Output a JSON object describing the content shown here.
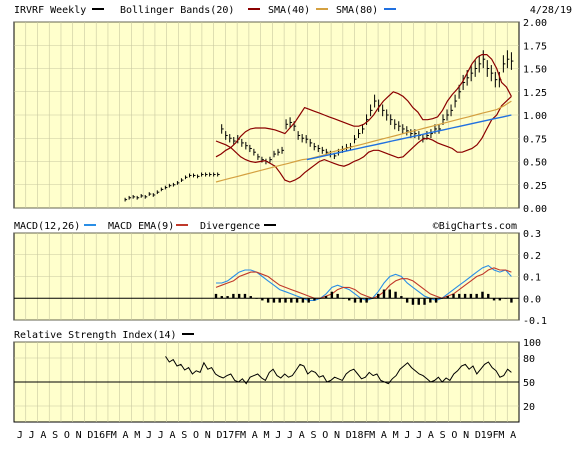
{
  "header": {
    "symbol": "IRVRF Weekly",
    "legend_bollinger": "Bollinger Bands(20)",
    "legend_sma40": "SMA(40)",
    "legend_sma80": "SMA(80)",
    "date": "4/28/19"
  },
  "colors": {
    "panel_bg": "#ffffcc",
    "grid": "#c8c8a0",
    "price": "#000000",
    "bollinger": "#8b0000",
    "sma40": "#d4a040",
    "sma80": "#2070e0",
    "macd": "#2a8ee6",
    "macd_ema": "#c0392b",
    "divergence": "#000000",
    "rsi": "#000000"
  },
  "x_axis": {
    "labels": [
      "J",
      "J",
      "A",
      "S",
      "O",
      "N",
      "D",
      "16F",
      "M",
      "A",
      "M",
      "J",
      "J",
      "A",
      "S",
      "O",
      "N",
      "D",
      "17F",
      "M",
      "A",
      "M",
      "J",
      "J",
      "A",
      "S",
      "O",
      "N",
      "D",
      "18F",
      "M",
      "A",
      "M",
      "J",
      "J",
      "A",
      "S",
      "O",
      "N",
      "D",
      "19F",
      "M",
      "A"
    ]
  },
  "macd_header": {
    "macd_label": "MACD(12,26)",
    "ema_label": "MACD EMA(9)",
    "divergence_label": "Divergence",
    "watermark": "©BigCharts.com"
  },
  "rsi_header": {
    "label": "Relative Strength Index(14)"
  },
  "chart_data": [
    {
      "type": "line",
      "title": "IRVRF Weekly",
      "y_ticks": [
        "0.00",
        "0.25",
        "0.50",
        "0.75",
        "1.00",
        "1.25",
        "1.50",
        "1.75",
        "2.00"
      ],
      "ylim": [
        0,
        2.0
      ],
      "grid": true,
      "series": [
        {
          "name": "IRVRF Weekly",
          "values": [
            0.09,
            0.11,
            0.12,
            0.11,
            0.13,
            0.12,
            0.15,
            0.14,
            0.17,
            0.2,
            0.22,
            0.24,
            0.25,
            0.27,
            0.3,
            0.33,
            0.35,
            0.35,
            0.34,
            0.36,
            0.36,
            0.36,
            0.36,
            0.36,
            0.85,
            0.78,
            0.75,
            0.72,
            0.74,
            0.7,
            0.67,
            0.64,
            0.6,
            0.55,
            0.52,
            0.5,
            0.52,
            0.58,
            0.6,
            0.62,
            0.9,
            0.92,
            0.88,
            0.78,
            0.75,
            0.74,
            0.7,
            0.66,
            0.64,
            0.62,
            0.6,
            0.58,
            0.56,
            0.6,
            0.63,
            0.65,
            0.66,
            0.74,
            0.8,
            0.85,
            0.95,
            1.05,
            1.15,
            1.1,
            1.05,
            1.0,
            0.95,
            0.9,
            0.88,
            0.85,
            0.83,
            0.8,
            0.8,
            0.78,
            0.75,
            0.78,
            0.8,
            0.85,
            0.85,
            0.95,
            1.0,
            1.05,
            1.15,
            1.25,
            1.35,
            1.4,
            1.45,
            1.5,
            1.55,
            1.6,
            1.5,
            1.45,
            1.38,
            1.38,
            1.55,
            1.6,
            1.58
          ]
        },
        {
          "name": "Bollinger Bands(20)",
          "values": [
            0.55,
            0.58,
            0.62,
            0.65,
            0.7,
            0.77,
            0.82,
            0.85,
            0.86,
            0.86,
            0.86,
            0.85,
            0.84,
            0.82,
            0.8,
            0.86,
            0.92,
            1.0,
            1.08,
            1.06,
            1.04,
            1.02,
            1.0,
            0.98,
            0.96,
            0.94,
            0.92,
            0.9,
            0.88,
            0.88,
            0.9,
            0.94,
            1.0,
            1.08,
            1.15,
            1.2,
            1.25,
            1.23,
            1.2,
            1.15,
            1.08,
            1.03,
            0.95,
            0.95,
            0.96,
            0.98,
            1.05,
            1.15,
            1.22,
            1.28,
            1.35,
            1.45,
            1.55,
            1.62,
            1.65,
            1.65,
            1.6,
            1.5,
            1.35,
            1.3,
            1.2
          ]
        },
        {
          "name": "Bollinger lower band",
          "values": [
            0.72,
            0.7,
            0.68,
            0.65,
            0.6,
            0.55,
            0.52,
            0.5,
            0.49,
            0.5,
            0.51,
            0.48,
            0.45,
            0.38,
            0.3,
            0.28,
            0.3,
            0.33,
            0.38,
            0.42,
            0.46,
            0.5,
            0.52,
            0.5,
            0.48,
            0.46,
            0.45,
            0.47,
            0.5,
            0.52,
            0.55,
            0.6,
            0.62,
            0.62,
            0.6,
            0.58,
            0.56,
            0.54,
            0.55,
            0.6,
            0.65,
            0.7,
            0.74,
            0.75,
            0.73,
            0.7,
            0.68,
            0.66,
            0.64,
            0.6,
            0.6,
            0.62,
            0.64,
            0.68,
            0.75,
            0.85,
            0.95,
            1.0,
            1.1,
            1.15,
            1.2
          ]
        },
        {
          "name": "SMA(40)",
          "values": [
            0.28,
            0.3,
            0.32,
            0.34,
            0.36,
            0.38,
            0.4,
            0.42,
            0.44,
            0.46,
            0.48,
            0.5,
            0.52,
            0.53,
            0.55,
            0.57,
            0.6,
            0.62,
            0.64,
            0.66,
            0.68,
            0.7,
            0.72,
            0.74,
            0.76,
            0.78,
            0.8,
            0.82,
            0.84,
            0.86,
            0.88,
            0.9,
            0.92,
            0.94,
            0.96,
            0.98,
            1.0,
            1.02,
            1.04,
            1.06,
            1.1,
            1.15
          ]
        },
        {
          "name": "SMA(80)",
          "values": [
            0.52,
            0.54,
            0.56,
            0.58,
            0.6,
            0.62,
            0.64,
            0.66,
            0.68,
            0.7,
            0.72,
            0.74,
            0.76,
            0.78,
            0.8,
            0.82,
            0.84,
            0.86,
            0.88,
            0.9,
            0.92,
            0.94,
            0.96,
            0.98,
            1.0
          ]
        }
      ]
    },
    {
      "type": "line",
      "title": "MACD(12,26)",
      "y_ticks": [
        "-0.1",
        "0.0",
        "0.1",
        "0.2",
        "0.3"
      ],
      "ylim": [
        -0.1,
        0.3
      ],
      "series": [
        {
          "name": "MACD(12,26)",
          "values": [
            0.07,
            0.07,
            0.08,
            0.1,
            0.12,
            0.13,
            0.13,
            0.12,
            0.1,
            0.08,
            0.06,
            0.04,
            0.03,
            0.02,
            0.01,
            0.0,
            -0.01,
            -0.01,
            0.0,
            0.02,
            0.05,
            0.06,
            0.05,
            0.04,
            0.02,
            0.0,
            -0.01,
            0.0,
            0.03,
            0.07,
            0.1,
            0.11,
            0.1,
            0.07,
            0.05,
            0.03,
            0.01,
            0.0,
            -0.01,
            0.0,
            0.02,
            0.04,
            0.06,
            0.08,
            0.1,
            0.12,
            0.14,
            0.15,
            0.13,
            0.12,
            0.13,
            0.1
          ]
        },
        {
          "name": "MACD EMA(9)",
          "values": [
            0.05,
            0.06,
            0.07,
            0.08,
            0.1,
            0.11,
            0.12,
            0.12,
            0.11,
            0.1,
            0.08,
            0.06,
            0.05,
            0.04,
            0.03,
            0.02,
            0.01,
            0.0,
            0.0,
            0.01,
            0.02,
            0.04,
            0.05,
            0.05,
            0.04,
            0.02,
            0.01,
            0.0,
            0.01,
            0.03,
            0.06,
            0.08,
            0.09,
            0.09,
            0.08,
            0.06,
            0.04,
            0.02,
            0.01,
            0.0,
            0.01,
            0.02,
            0.04,
            0.06,
            0.08,
            0.1,
            0.11,
            0.13,
            0.14,
            0.13,
            0.13,
            0.12
          ]
        },
        {
          "name": "Divergence",
          "values": [
            0.02,
            0.01,
            0.01,
            0.02,
            0.02,
            0.02,
            0.01,
            0.0,
            -0.01,
            -0.02,
            -0.02,
            -0.02,
            -0.02,
            -0.02,
            -0.02,
            -0.02,
            -0.02,
            -0.01,
            0.0,
            0.01,
            0.03,
            0.02,
            0.0,
            -0.01,
            -0.02,
            -0.02,
            -0.02,
            0.0,
            0.02,
            0.04,
            0.04,
            0.03,
            0.01,
            -0.02,
            -0.03,
            -0.03,
            -0.03,
            -0.02,
            -0.02,
            0.0,
            0.01,
            0.02,
            0.02,
            0.02,
            0.02,
            0.02,
            0.03,
            0.02,
            -0.01,
            -0.01,
            0.0,
            -0.02
          ]
        }
      ]
    },
    {
      "type": "line",
      "title": "Relative Strength Index(14)",
      "y_ticks": [
        "20",
        "50",
        "80",
        "100"
      ],
      "ylim": [
        0,
        100
      ],
      "series": [
        {
          "name": "Relative Strength Index(14)",
          "values": [
            82,
            75,
            78,
            70,
            72,
            65,
            68,
            60,
            64,
            62,
            74,
            66,
            68,
            60,
            57,
            55,
            58,
            60,
            52,
            50,
            54,
            48,
            56,
            58,
            60,
            55,
            52,
            62,
            66,
            58,
            55,
            60,
            56,
            58,
            65,
            72,
            70,
            60,
            64,
            62,
            56,
            58,
            50,
            52,
            56,
            54,
            52,
            60,
            64,
            66,
            60,
            54,
            56,
            62,
            58,
            60,
            52,
            50,
            48,
            54,
            58,
            66,
            70,
            74,
            68,
            64,
            60,
            58,
            54,
            50,
            52,
            56,
            50,
            55,
            52,
            60,
            64,
            70,
            72,
            66,
            70,
            60,
            66,
            72,
            75,
            68,
            64,
            56,
            58,
            66,
            62
          ]
        }
      ]
    }
  ]
}
